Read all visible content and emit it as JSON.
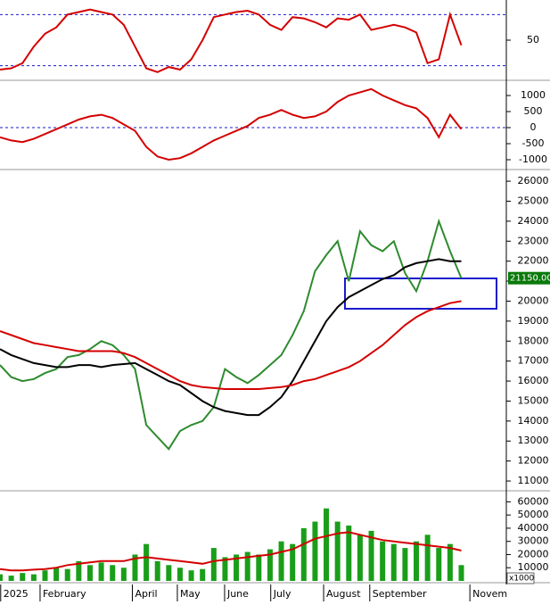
{
  "x_axis": {
    "xlim": [
      0,
      225
    ],
    "x": [
      0,
      5,
      10,
      15,
      20,
      25,
      30,
      35,
      40,
      45,
      50,
      55,
      60,
      65,
      70,
      75,
      80,
      85,
      90,
      95,
      100,
      105,
      110,
      115,
      120,
      125,
      130,
      135,
      140,
      145,
      150,
      155,
      160,
      165,
      170,
      175,
      180,
      185,
      190,
      195,
      200,
      205
    ],
    "xticks": [
      {
        "value": 1.5,
        "label": "2025"
      },
      {
        "value": 19,
        "label": "February"
      },
      {
        "value": 60,
        "label": "April"
      },
      {
        "value": 80,
        "label": "May"
      },
      {
        "value": 101,
        "label": "June"
      },
      {
        "value": 121.5,
        "label": "July"
      },
      {
        "value": 145,
        "label": "August"
      },
      {
        "value": 165.5,
        "label": "September"
      },
      {
        "value": 210,
        "label": "Novem"
      }
    ]
  },
  "chart_data": [
    {
      "type": "line",
      "ylim": [
        20,
        80
      ],
      "yticks": [
        50
      ],
      "levels": [
        30,
        70
      ],
      "series": [
        {
          "color": "#d40000",
          "values": [
            27,
            28,
            32,
            45,
            55,
            60,
            70,
            72,
            74,
            72,
            70,
            62,
            45,
            28,
            25,
            29,
            27,
            35,
            50,
            68,
            70,
            72,
            73,
            70,
            62,
            58,
            68,
            67,
            64,
            60,
            67,
            66,
            70,
            58,
            60,
            62,
            60,
            56,
            32,
            35,
            70,
            46
          ]
        }
      ]
    },
    {
      "type": "line",
      "ylim": [
        -1250,
        1390
      ],
      "yticks": [
        1000,
        500,
        0,
        -500,
        -1000
      ],
      "levels": [
        0
      ],
      "series": [
        {
          "color": "#d40000",
          "values": [
            -300,
            -400,
            -450,
            -350,
            -200,
            -50,
            100,
            250,
            350,
            400,
            300,
            100,
            -100,
            -600,
            -900,
            -1000,
            -950,
            -800,
            -600,
            -400,
            -250,
            -100,
            50,
            300,
            400,
            550,
            400,
            300,
            350,
            500,
            800,
            1000,
            1100,
            1200,
            1000,
            850,
            700,
            600,
            300,
            -300,
            400,
            -50
          ]
        }
      ]
    },
    {
      "type": "line",
      "ylim": [
        10600,
        26450
      ],
      "yticks": [
        26000,
        25000,
        24000,
        23000,
        22000,
        21000,
        20000,
        19000,
        18000,
        17000,
        16000,
        15000,
        14000,
        13000,
        12000,
        11000
      ],
      "last_value": {
        "value": 21150,
        "label": "21150.00"
      },
      "series": [
        {
          "color": "#2e8b2e",
          "values": [
            16800,
            16200,
            16000,
            16100,
            16400,
            16600,
            17200,
            17300,
            17600,
            18000,
            17800,
            17300,
            16600,
            13800,
            13200,
            12600,
            13500,
            13800,
            14000,
            14700,
            16600,
            16200,
            15900,
            16300,
            16800,
            17300,
            18300,
            19500,
            21500,
            22300,
            23000,
            21000,
            23500,
            22800,
            22500,
            23000,
            21400,
            20500,
            22000,
            24000,
            22500,
            21150
          ]
        },
        {
          "color": "#000000",
          "values": [
            17600,
            17300,
            17100,
            16900,
            16800,
            16700,
            16700,
            16800,
            16800,
            16700,
            16800,
            16850,
            16900,
            16600,
            16300,
            16000,
            15800,
            15400,
            15000,
            14700,
            14500,
            14400,
            14300,
            14300,
            14700,
            15200,
            16000,
            17000,
            18000,
            19000,
            19700,
            20200,
            20500,
            20800,
            21100,
            21300,
            21700,
            21900,
            22000,
            22100,
            22000,
            22000
          ]
        },
        {
          "color": "#d40000",
          "values": [
            18500,
            18300,
            18100,
            17900,
            17800,
            17700,
            17600,
            17500,
            17500,
            17500,
            17500,
            17400,
            17200,
            16900,
            16600,
            16300,
            16000,
            15800,
            15700,
            15650,
            15600,
            15600,
            15600,
            15600,
            15650,
            15700,
            15800,
            16000,
            16100,
            16300,
            16500,
            16700,
            17000,
            17400,
            17800,
            18300,
            18800,
            19200,
            19500,
            19700,
            19900,
            20000
          ]
        }
      ]
    },
    {
      "type": "bar",
      "ylim": [
        0,
        65000
      ],
      "yticks": [
        60000,
        50000,
        40000,
        30000,
        20000,
        10000
      ],
      "unit": "x1000",
      "series": [
        {
          "kind": "bar",
          "color": "#1a9e1a",
          "values": [
            5000,
            4000,
            6000,
            5000,
            8000,
            10000,
            9000,
            15000,
            12000,
            14000,
            12000,
            10000,
            20000,
            28000,
            15000,
            12000,
            10000,
            8000,
            9000,
            25000,
            18000,
            20000,
            22000,
            20000,
            24000,
            30000,
            28000,
            40000,
            45000,
            55000,
            45000,
            42000,
            35000,
            38000,
            30000,
            28000,
            25000,
            30000,
            35000,
            25000,
            28000,
            12000
          ]
        },
        {
          "kind": "line",
          "color": "#d40000",
          "values": [
            9000,
            8000,
            8000,
            8500,
            9000,
            10000,
            12000,
            13000,
            14000,
            15000,
            15000,
            15000,
            17000,
            18000,
            17000,
            16000,
            15000,
            14000,
            13000,
            15000,
            16000,
            17000,
            18000,
            19000,
            20000,
            22000,
            24000,
            28000,
            32000,
            34000,
            36000,
            37000,
            35000,
            33000,
            31000,
            30000,
            29000,
            28000,
            27000,
            26000,
            25000,
            23000
          ]
        }
      ]
    }
  ]
}
